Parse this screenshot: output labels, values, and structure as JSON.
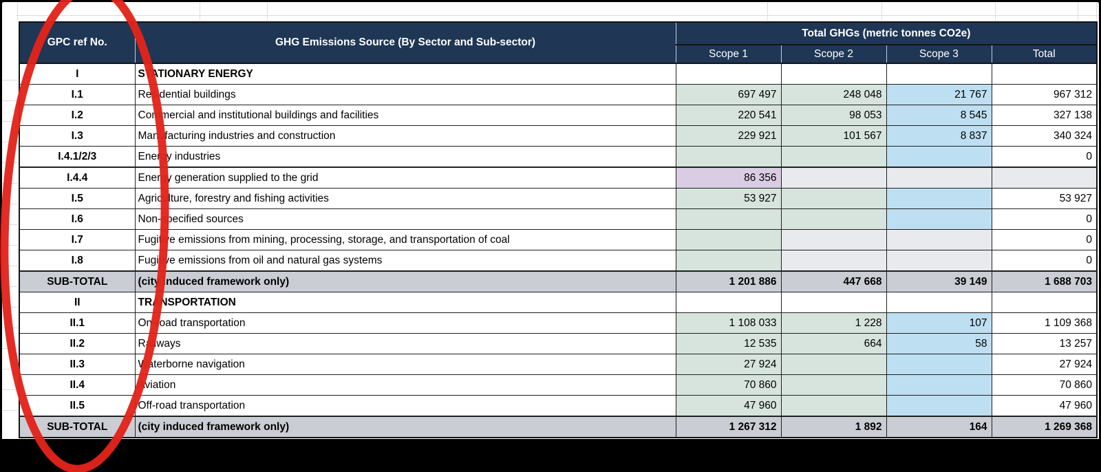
{
  "colors": {
    "navy": "#1f3655",
    "green": "#d6e4dd",
    "blue": "#bedff1",
    "purple": "#d9cde4",
    "gray_cell": "#e8eaee",
    "subtotal": "#cacdd3"
  },
  "table": {
    "header": {
      "ref": "GPC ref No.",
      "source": "GHG Emissions Source (By Sector and Sub-sector)",
      "group": "Total GHGs (metric tonnes CO2e)",
      "scopes": [
        "Scope 1",
        "Scope 2",
        "Scope 3",
        "Total"
      ]
    },
    "scope_keys": [
      "scope1",
      "scope2",
      "scope3",
      "total"
    ],
    "rows": [
      {
        "ref": "I",
        "source": "STATIONARY ENERGY",
        "type": "section",
        "values": [
          "",
          "",
          "",
          ""
        ],
        "styles": [
          "white",
          "white",
          "white",
          "white"
        ]
      },
      {
        "ref": "I.1",
        "source": "Residential buildings",
        "type": "data",
        "values": [
          "697 497",
          "248 048",
          "21 767",
          "967 312"
        ],
        "styles": [
          "green",
          "green",
          "blue",
          "white"
        ]
      },
      {
        "ref": "I.2",
        "source": "Commercial and institutional buildings and facilities",
        "type": "data",
        "values": [
          "220 541",
          "98 053",
          "8 545",
          "327 138"
        ],
        "styles": [
          "green",
          "green",
          "blue",
          "white"
        ]
      },
      {
        "ref": "I.3",
        "source": "Manufacturing industries and construction",
        "type": "data",
        "values": [
          "229 921",
          "101 567",
          "8 837",
          "340 324"
        ],
        "styles": [
          "green",
          "green",
          "blue",
          "white"
        ]
      },
      {
        "ref": "I.4.1/2/3",
        "source": "Energy industries",
        "type": "data",
        "values": [
          "",
          "",
          "",
          "0"
        ],
        "styles": [
          "green",
          "green",
          "blue",
          "white"
        ]
      },
      {
        "ref": "I.4.4",
        "source": "Energy generation supplied to the grid",
        "type": "data",
        "thick_top": true,
        "values": [
          "86 356",
          "",
          "",
          ""
        ],
        "styles": [
          "purple",
          "gray",
          "gray",
          "gray"
        ]
      },
      {
        "ref": "I.5",
        "source": "Agriculture, forestry and fishing activities",
        "type": "data",
        "values": [
          "53 927",
          "",
          "",
          "53 927"
        ],
        "styles": [
          "green",
          "green",
          "blue",
          "white"
        ]
      },
      {
        "ref": "I.6",
        "source": "Non-specified sources",
        "type": "data",
        "values": [
          "",
          "",
          "",
          "0"
        ],
        "styles": [
          "green",
          "green",
          "blue",
          "white"
        ]
      },
      {
        "ref": "I.7",
        "source": "Fugitive emissions from mining, processing, storage, and transportation of coal",
        "type": "data",
        "values": [
          "",
          "",
          "",
          "0"
        ],
        "styles": [
          "green",
          "gray",
          "gray",
          "white"
        ]
      },
      {
        "ref": "I.8",
        "source": "Fugitive emissions from oil and natural gas systems",
        "type": "data",
        "values": [
          "",
          "",
          "",
          "0"
        ],
        "styles": [
          "green",
          "gray",
          "gray",
          "white"
        ]
      },
      {
        "ref": "SUB-TOTAL",
        "source": "(city induced framework only)",
        "type": "subtotal",
        "values": [
          "1 201 886",
          "447 668",
          "39 149",
          "1 688 703"
        ],
        "styles": [
          "subtotal",
          "subtotal",
          "subtotal",
          "subtotal"
        ]
      },
      {
        "ref": "II",
        "source": "TRANSPORTATION",
        "type": "section",
        "values": [
          "",
          "",
          "",
          ""
        ],
        "styles": [
          "white",
          "white",
          "white",
          "white"
        ]
      },
      {
        "ref": "II.1",
        "source": "On-road transportation",
        "type": "data",
        "values": [
          "1 108 033",
          "1 228",
          "107",
          "1 109 368"
        ],
        "styles": [
          "green",
          "green",
          "blue",
          "white"
        ]
      },
      {
        "ref": "II.2",
        "source": "Railways",
        "type": "data",
        "values": [
          "12 535",
          "664",
          "58",
          "13 257"
        ],
        "styles": [
          "green",
          "green",
          "blue",
          "white"
        ]
      },
      {
        "ref": "II.3",
        "source": "Waterborne navigation",
        "type": "data",
        "values": [
          "27 924",
          "",
          "",
          "27 924"
        ],
        "styles": [
          "green",
          "green",
          "blue",
          "white"
        ]
      },
      {
        "ref": "II.4",
        "source": "Aviation",
        "type": "data",
        "values": [
          "70 860",
          "",
          "",
          "70 860"
        ],
        "styles": [
          "green",
          "green",
          "blue",
          "white"
        ]
      },
      {
        "ref": "II.5",
        "source": "Off-road transportation",
        "type": "data",
        "values": [
          "47 960",
          "",
          "",
          "47 960"
        ],
        "styles": [
          "green",
          "green",
          "blue",
          "white"
        ]
      },
      {
        "ref": "SUB-TOTAL",
        "source": "(city induced framework only)",
        "type": "subtotal",
        "values": [
          "1 267 312",
          "1 892",
          "164",
          "1 269 368"
        ],
        "styles": [
          "subtotal",
          "subtotal",
          "subtotal",
          "subtotal"
        ]
      }
    ]
  },
  "annotation": {
    "shape": "hand-drawn-ellipse",
    "color": "#e2231a",
    "target": "GPC ref No. column"
  }
}
